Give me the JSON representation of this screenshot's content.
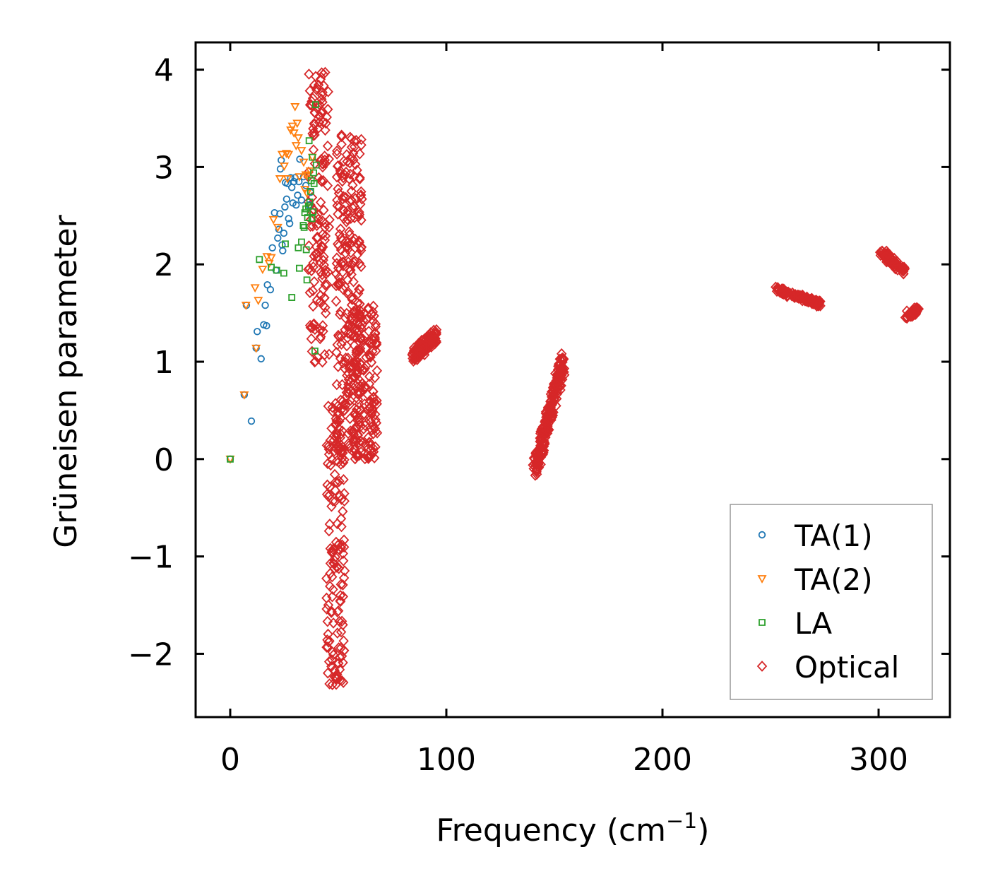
{
  "chart_data": {
    "type": "scatter",
    "title": "",
    "xlabel": "Frequency (cm",
    "xlabel_sup": "−1",
    "xlabel_close": ")",
    "ylabel": "Grüneisen parameter",
    "xlim": [
      -16,
      333
    ],
    "ylim": [
      -2.65,
      4.28
    ],
    "xticks": [
      0,
      100,
      200,
      300
    ],
    "xtick_labels": [
      "0",
      "100",
      "200",
      "300"
    ],
    "yticks": [
      -2,
      -1,
      0,
      1,
      2,
      3,
      4
    ],
    "ytick_labels": [
      "−2",
      "−1",
      "0",
      "1",
      "2",
      "3",
      "4"
    ],
    "grid": false,
    "legend_position": "lower-right",
    "series": [
      {
        "name": "TA(1)",
        "marker": "circle",
        "color": "#1f77b4",
        "points": [
          [
            0,
            0
          ],
          [
            6.5,
            0.66
          ],
          [
            7.5,
            1.58
          ],
          [
            9.8,
            0.39
          ],
          [
            12,
            1.14
          ],
          [
            12.5,
            1.31
          ],
          [
            14.3,
            1.03
          ],
          [
            15.5,
            1.38
          ],
          [
            16.2,
            1.58
          ],
          [
            16.8,
            1.37
          ],
          [
            17.2,
            1.79
          ],
          [
            18.6,
            1.74
          ],
          [
            19.5,
            2.17
          ],
          [
            20.5,
            2.53
          ],
          [
            21.2,
            1.94
          ],
          [
            22,
            2.27
          ],
          [
            22.5,
            2.36
          ],
          [
            23,
            2.52
          ],
          [
            23.2,
            2.98
          ],
          [
            23.6,
            3.07
          ],
          [
            24,
            2.2
          ],
          [
            24.3,
            2.14
          ],
          [
            24.8,
            2.32
          ],
          [
            25.3,
            2.59
          ],
          [
            25.6,
            2.84
          ],
          [
            26.1,
            2.67
          ],
          [
            26.6,
            2.83
          ],
          [
            27,
            2.47
          ],
          [
            27.5,
            2.42
          ],
          [
            28,
            2.89
          ],
          [
            28.5,
            2.79
          ],
          [
            29,
            2.63
          ],
          [
            29.5,
            2.85
          ],
          [
            30,
            2.89
          ],
          [
            30.5,
            2.61
          ],
          [
            31.2,
            2.71
          ],
          [
            31.8,
            2.85
          ],
          [
            32.2,
            3.08
          ],
          [
            33,
            2.66
          ],
          [
            34,
            2.9
          ],
          [
            35,
            2.81
          ],
          [
            36.5,
            2.61
          ],
          [
            37.2,
            2.74
          ]
        ]
      },
      {
        "name": "TA(2)",
        "marker": "triangle-down",
        "color": "#ff7f0e",
        "points": [
          [
            0,
            0
          ],
          [
            6.5,
            0.66
          ],
          [
            7.3,
            1.58
          ],
          [
            11.5,
            1.76
          ],
          [
            12,
            1.14
          ],
          [
            13,
            1.63
          ],
          [
            15,
            1.95
          ],
          [
            17,
            2.08
          ],
          [
            18,
            2.01
          ],
          [
            19,
            2.07
          ],
          [
            20,
            2.46
          ],
          [
            22,
            2.38
          ],
          [
            23,
            2.88
          ],
          [
            24,
            3.13
          ],
          [
            25,
            3.01
          ],
          [
            26,
            3.14
          ],
          [
            26.5,
            2.88
          ],
          [
            27,
            3.13
          ],
          [
            28,
            3.38
          ],
          [
            28.8,
            3.42
          ],
          [
            29.5,
            3.35
          ],
          [
            30,
            3.62
          ],
          [
            30.5,
            3.22
          ],
          [
            31,
            3.45
          ],
          [
            31.5,
            3.3
          ],
          [
            32,
            2.9
          ],
          [
            33,
            3.17
          ],
          [
            34,
            3.05
          ],
          [
            34.5,
            2.77
          ],
          [
            35,
            2.92
          ],
          [
            35.5,
            2.73
          ],
          [
            36,
            2.91
          ],
          [
            37,
            2.96
          ],
          [
            38,
            3.1
          ]
        ]
      },
      {
        "name": "LA",
        "marker": "square",
        "color": "#2ca02c",
        "points": [
          [
            0,
            0
          ],
          [
            13.5,
            2.05
          ],
          [
            19,
            1.97
          ],
          [
            21.5,
            1.94
          ],
          [
            24.8,
            1.91
          ],
          [
            25.5,
            2.21
          ],
          [
            28.5,
            1.66
          ],
          [
            31.5,
            2.17
          ],
          [
            32,
            1.96
          ],
          [
            33,
            2.23
          ],
          [
            33.8,
            2.4
          ],
          [
            34.2,
            2.38
          ],
          [
            34.5,
            2.53
          ],
          [
            35,
            2.57
          ],
          [
            35.2,
            2.15
          ],
          [
            35.5,
            1.84
          ],
          [
            35.8,
            2.48
          ],
          [
            36.2,
            2.6
          ],
          [
            36.5,
            3.27
          ],
          [
            36.8,
            2.64
          ],
          [
            37.2,
            2.75
          ],
          [
            37.5,
            2.86
          ],
          [
            37.8,
            2.47
          ],
          [
            38,
            3.1
          ],
          [
            38.3,
            2.54
          ],
          [
            38.6,
            2.94
          ],
          [
            38.8,
            2.83
          ],
          [
            39.2,
            1.11
          ],
          [
            39.5,
            3.64
          ],
          [
            39.8,
            3.02
          ]
        ]
      },
      {
        "name": "Optical",
        "marker": "diamond",
        "color": "#d62728",
        "points": [],
        "clusters": [
          {
            "fmin": 36,
            "fmax": 46,
            "gmin": 0.98,
            "gmax": 3.98,
            "count": 150
          },
          {
            "fmin": 44.5,
            "fmax": 53,
            "gmin": -2.33,
            "gmax": 0.6,
            "count": 150
          },
          {
            "fmin": 49,
            "fmax": 61,
            "gmin": 0.0,
            "gmax": 3.42,
            "count": 260
          },
          {
            "fmin": 57,
            "fmax": 68,
            "gmin": 0.0,
            "gmax": 1.6,
            "count": 150
          },
          {
            "f1": 85,
            "g1": 1.06,
            "f2": 95,
            "g2": 1.27,
            "spread": 0.07,
            "count": 140
          },
          {
            "f1": 141,
            "g1": -0.11,
            "f2": 154,
            "g2": 1.0,
            "spread": 0.1,
            "count": 240
          },
          {
            "f1": 253,
            "g1": 1.74,
            "f2": 273,
            "g2": 1.59,
            "spread": 0.03,
            "count": 120
          },
          {
            "f1": 301,
            "g1": 2.13,
            "f2": 312,
            "g2": 1.93,
            "spread": 0.04,
            "count": 80
          },
          {
            "f1": 313,
            "g1": 1.48,
            "f2": 318,
            "g2": 1.53,
            "spread": 0.04,
            "count": 40
          }
        ]
      }
    ]
  }
}
